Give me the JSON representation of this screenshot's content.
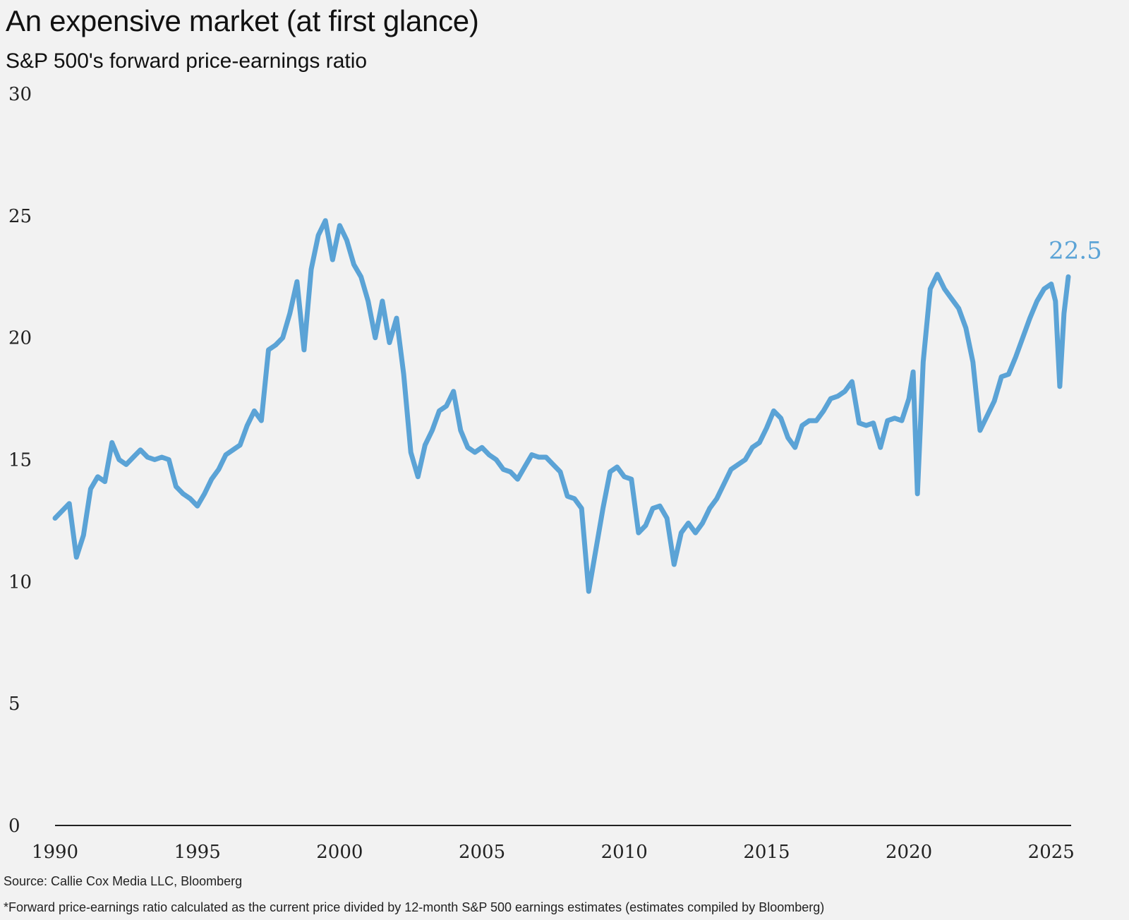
{
  "title": "An expensive market (at first glance)",
  "subtitle": "S&P 500's forward price-earnings ratio",
  "source": "Source: Callie Cox Media LLC, Bloomberg",
  "footnote": "*Forward price-earnings ratio calculated as the current price divided by 12-month S&P 500 earnings estimates (estimates compiled by Bloomberg)",
  "colors": {
    "line": "#5ba3d6",
    "axis": "#222222",
    "background": "#f2f2f2"
  },
  "chart_data": {
    "type": "line",
    "title": "An expensive market (at first glance)",
    "subtitle": "S&P 500's forward price-earnings ratio",
    "xlabel": "",
    "ylabel": "",
    "xlim": [
      1990,
      2025.7
    ],
    "ylim": [
      0,
      30
    ],
    "x_ticks": [
      1990,
      1995,
      2000,
      2005,
      2010,
      2015,
      2020,
      2025
    ],
    "x_tick_labels": [
      "1990",
      "1995",
      "2000",
      "2005",
      "2010",
      "2015",
      "2020",
      "2025"
    ],
    "y_ticks": [
      0,
      5,
      10,
      15,
      20,
      25,
      30
    ],
    "y_tick_labels": [
      "0",
      "5",
      "10",
      "15",
      "20",
      "25",
      "30"
    ],
    "grid": false,
    "legend": "none",
    "series": [
      {
        "color": "#5ba3d6",
        "end_label": "22.5",
        "x": [
          1990.0,
          1990.25,
          1990.5,
          1990.75,
          1991.0,
          1991.25,
          1991.5,
          1991.75,
          1992.0,
          1992.25,
          1992.5,
          1992.75,
          1993.0,
          1993.25,
          1993.5,
          1993.75,
          1994.0,
          1994.25,
          1994.5,
          1994.75,
          1995.0,
          1995.25,
          1995.5,
          1995.75,
          1996.0,
          1996.25,
          1996.5,
          1996.75,
          1997.0,
          1997.25,
          1997.5,
          1997.75,
          1998.0,
          1998.25,
          1998.5,
          1998.75,
          1999.0,
          1999.25,
          1999.5,
          1999.75,
          2000.0,
          2000.25,
          2000.5,
          2000.75,
          2001.0,
          2001.25,
          2001.5,
          2001.75,
          2002.0,
          2002.25,
          2002.5,
          2002.75,
          2003.0,
          2003.25,
          2003.5,
          2003.75,
          2004.0,
          2004.25,
          2004.5,
          2004.75,
          2005.0,
          2005.25,
          2005.5,
          2005.75,
          2006.0,
          2006.25,
          2006.5,
          2006.75,
          2007.0,
          2007.25,
          2007.5,
          2007.75,
          2008.0,
          2008.25,
          2008.5,
          2008.75,
          2009.0,
          2009.25,
          2009.5,
          2009.75,
          2010.0,
          2010.25,
          2010.5,
          2010.75,
          2011.0,
          2011.25,
          2011.5,
          2011.75,
          2012.0,
          2012.25,
          2012.5,
          2012.75,
          2013.0,
          2013.25,
          2013.5,
          2013.75,
          2014.0,
          2014.25,
          2014.5,
          2014.75,
          2015.0,
          2015.25,
          2015.5,
          2015.75,
          2016.0,
          2016.25,
          2016.5,
          2016.75,
          2017.0,
          2017.25,
          2017.5,
          2017.75,
          2018.0,
          2018.25,
          2018.5,
          2018.75,
          2019.0,
          2019.25,
          2019.5,
          2019.75,
          2020.0,
          2020.15,
          2020.3,
          2020.5,
          2020.75,
          2021.0,
          2021.25,
          2021.5,
          2021.75,
          2022.0,
          2022.25,
          2022.5,
          2022.75,
          2023.0,
          2023.25,
          2023.5,
          2023.75,
          2024.0,
          2024.25,
          2024.5,
          2024.75,
          2025.0,
          2025.15,
          2025.3,
          2025.45,
          2025.6
        ],
        "values": [
          12.6,
          12.9,
          13.2,
          11.0,
          11.9,
          13.8,
          14.3,
          14.1,
          15.7,
          15.0,
          14.8,
          15.1,
          15.4,
          15.1,
          15.0,
          15.1,
          15.0,
          13.9,
          13.6,
          13.4,
          13.1,
          13.6,
          14.2,
          14.6,
          15.2,
          15.4,
          15.6,
          16.4,
          17.0,
          16.6,
          19.5,
          19.7,
          20.0,
          21.0,
          22.3,
          19.5,
          22.8,
          24.2,
          24.8,
          23.2,
          24.6,
          24.0,
          23.0,
          22.5,
          21.5,
          20.0,
          21.5,
          19.8,
          20.8,
          18.5,
          15.3,
          14.3,
          15.6,
          16.2,
          17.0,
          17.2,
          17.8,
          16.2,
          15.5,
          15.3,
          15.5,
          15.2,
          15.0,
          14.6,
          14.5,
          14.2,
          14.7,
          15.2,
          15.1,
          15.1,
          14.8,
          14.5,
          13.5,
          13.4,
          13.0,
          9.6,
          11.3,
          13.0,
          14.5,
          14.7,
          14.3,
          14.2,
          12.0,
          12.3,
          13.0,
          13.1,
          12.6,
          10.7,
          12.0,
          12.4,
          12.0,
          12.4,
          13.0,
          13.4,
          14.0,
          14.6,
          14.8,
          15.0,
          15.5,
          15.7,
          16.3,
          17.0,
          16.7,
          15.9,
          15.5,
          16.4,
          16.6,
          16.6,
          17.0,
          17.5,
          17.6,
          17.8,
          18.2,
          16.5,
          16.4,
          16.5,
          15.5,
          16.6,
          16.7,
          16.6,
          17.5,
          18.6,
          13.6,
          19.0,
          22.0,
          22.6,
          22.0,
          21.6,
          21.2,
          20.4,
          19.0,
          16.2,
          16.8,
          17.4,
          18.4,
          18.5,
          19.2,
          20.0,
          20.8,
          21.5,
          22.0,
          22.2,
          21.5,
          18.0,
          21.0,
          22.5
        ]
      }
    ]
  }
}
